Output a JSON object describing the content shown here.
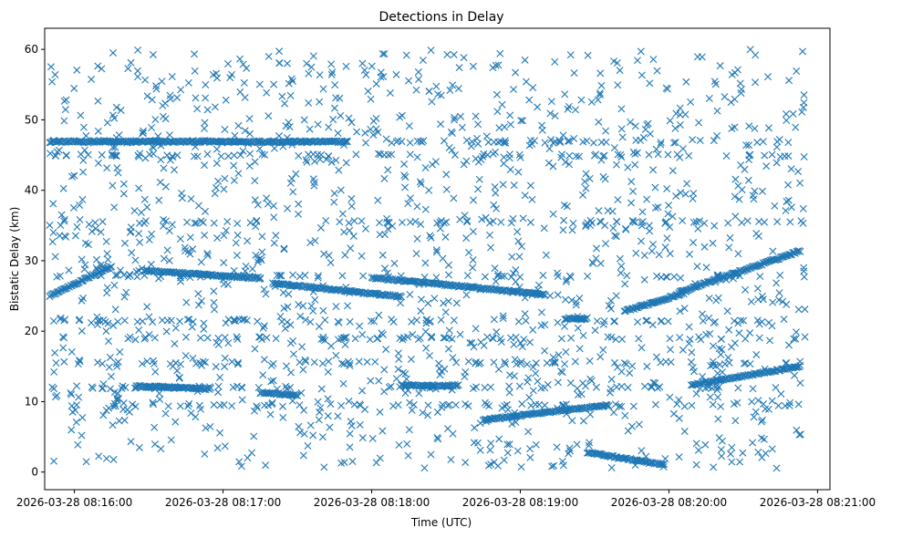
{
  "chart_data": {
    "type": "scatter",
    "title": "Detections in Delay",
    "xlabel": "Time (UTC)",
    "ylabel": "Bistatic Delay (km)",
    "marker": "x",
    "color": "#1f77b4",
    "grid": false,
    "legend": "none",
    "xlim": [
      "2026-03-28 08:15:48",
      "2026-03-28 08:21:05"
    ],
    "ylim": [
      -2.5,
      63
    ],
    "x_ticks": [
      "2026-03-28 08:16:00",
      "2026-03-28 08:17:00",
      "2026-03-28 08:18:00",
      "2026-03-28 08:19:00",
      "2026-03-28 08:20:00",
      "2026-03-28 08:21:00"
    ],
    "y_ticks": [
      "0",
      "10",
      "20",
      "30",
      "40",
      "50",
      "60"
    ],
    "track_series": [
      {
        "start": "2026-03-28 08:15:50",
        "end": "2026-03-28 08:17:50",
        "y_start": 46.9,
        "y_end": 46.9
      },
      {
        "start": "2026-03-28 08:15:50",
        "end": "2026-03-28 08:16:15",
        "y_start": 25.0,
        "y_end": 29.2
      },
      {
        "start": "2026-03-28 08:16:28",
        "end": "2026-03-28 08:17:15",
        "y_start": 28.6,
        "y_end": 27.5
      },
      {
        "start": "2026-03-28 08:17:20",
        "end": "2026-03-28 08:18:12",
        "y_start": 26.8,
        "y_end": 24.9
      },
      {
        "start": "2026-03-28 08:18:00",
        "end": "2026-03-28 08:19:10",
        "y_start": 27.6,
        "y_end": 25.2
      },
      {
        "start": "2026-03-28 08:18:45",
        "end": "2026-03-28 08:19:35",
        "y_start": 7.4,
        "y_end": 9.5
      },
      {
        "start": "2026-03-28 08:19:27",
        "end": "2026-03-28 08:19:58",
        "y_start": 2.8,
        "y_end": 1.0
      },
      {
        "start": "2026-03-28 08:19:42",
        "end": "2026-03-28 08:20:06",
        "y_start": 22.8,
        "y_end": 25.4
      },
      {
        "start": "2026-03-28 08:20:04",
        "end": "2026-03-28 08:20:53",
        "y_start": 25.5,
        "y_end": 31.4
      },
      {
        "start": "2026-03-28 08:20:09",
        "end": "2026-03-28 08:20:53",
        "y_start": 12.4,
        "y_end": 15.0
      },
      {
        "start": "2026-03-28 08:19:18",
        "end": "2026-03-28 08:19:27",
        "y_start": 21.8,
        "y_end": 21.8
      },
      {
        "start": "2026-03-28 08:18:12",
        "end": "2026-03-28 08:18:35",
        "y_start": 12.3,
        "y_end": 12.3
      },
      {
        "start": "2026-03-28 08:17:15",
        "end": "2026-03-28 08:17:30",
        "y_start": 11.3,
        "y_end": 10.9
      },
      {
        "start": "2026-03-28 08:16:25",
        "end": "2026-03-28 08:16:55",
        "y_start": 12.2,
        "y_end": 11.8
      }
    ],
    "clutter_rows": [
      9.5,
      12.0,
      15.5,
      19.0,
      21.5,
      27.8,
      35.5,
      45.0,
      46.9
    ],
    "noise_points_estimated": 1400
  }
}
